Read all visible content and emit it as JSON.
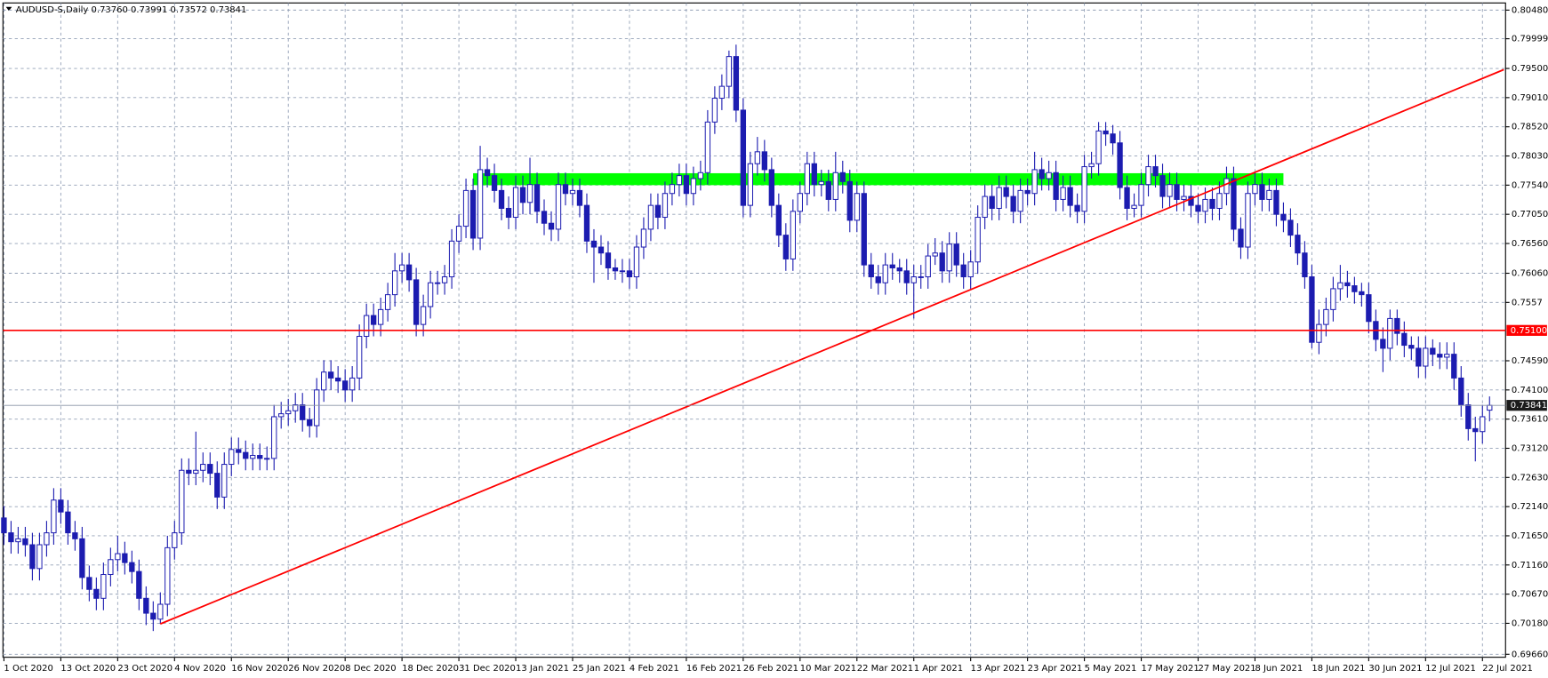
{
  "chart_data": {
    "type": "candlestick",
    "title": "AUDUSD-S,Daily",
    "quote": {
      "value_labels": [
        "0.73760",
        "0.73991",
        "0.73572",
        "0.73841"
      ]
    },
    "categories": [
      "1 Oct 2020",
      null,
      null,
      null,
      null,
      null,
      null,
      null,
      "13 Oct 2020",
      null,
      null,
      null,
      null,
      null,
      null,
      null,
      "23 Oct 2020",
      null,
      null,
      null,
      null,
      null,
      null,
      null,
      "4 Nov 2020",
      null,
      null,
      null,
      null,
      null,
      null,
      null,
      "16 Nov 2020",
      null,
      null,
      null,
      null,
      null,
      null,
      null,
      "26 Nov 2020",
      null,
      null,
      null,
      null,
      null,
      null,
      null,
      "8 Dec 2020",
      null,
      null,
      null,
      null,
      null,
      null,
      null,
      "18 Dec 2020",
      null,
      null,
      null,
      null,
      null,
      null,
      null,
      "31 Dec 2020",
      null,
      null,
      null,
      null,
      null,
      null,
      null,
      "13 Jan 2021",
      null,
      null,
      null,
      null,
      null,
      null,
      null,
      "25 Jan 2021",
      null,
      null,
      null,
      null,
      null,
      null,
      null,
      "4 Feb 2021",
      null,
      null,
      null,
      null,
      null,
      null,
      null,
      "16 Feb 2021",
      null,
      null,
      null,
      null,
      null,
      null,
      null,
      "26 Feb 2021",
      null,
      null,
      null,
      null,
      null,
      null,
      null,
      "10 Mar 2021",
      null,
      null,
      null,
      null,
      null,
      null,
      null,
      "22 Mar 2021",
      null,
      null,
      null,
      null,
      null,
      null,
      null,
      "1 Apr 2021",
      null,
      null,
      null,
      null,
      null,
      null,
      null,
      "13 Apr 2021",
      null,
      null,
      null,
      null,
      null,
      null,
      null,
      "23 Apr 2021",
      null,
      null,
      null,
      null,
      null,
      null,
      null,
      "5 May 2021",
      null,
      null,
      null,
      null,
      null,
      null,
      null,
      "17 May 2021",
      null,
      null,
      null,
      null,
      null,
      null,
      null,
      "27 May 2021",
      null,
      null,
      null,
      null,
      null,
      null,
      null,
      "8 Jun 2021",
      null,
      null,
      null,
      null,
      null,
      null,
      null,
      "18 Jun 2021",
      null,
      null,
      null,
      null,
      null,
      null,
      null,
      "30 Jun 2021",
      null,
      null,
      null,
      null,
      null,
      null,
      null,
      "12 Jul 2021",
      null,
      null,
      null,
      null,
      null,
      null,
      null,
      "22 Jul 2021",
      null
    ],
    "open": [
      0.7195,
      0.717,
      0.7155,
      0.716,
      0.715,
      0.711,
      0.715,
      0.717,
      0.7225,
      0.7205,
      0.717,
      0.716,
      0.7095,
      0.7075,
      0.706,
      0.71,
      0.7125,
      0.7135,
      0.712,
      0.7105,
      0.706,
      0.7035,
      0.7025,
      0.705,
      0.7145,
      0.717,
      0.7275,
      0.727,
      0.7275,
      0.7285,
      0.727,
      0.723,
      0.7285,
      0.731,
      0.7305,
      0.7295,
      0.73,
      0.7295,
      0.7295,
      0.7365,
      0.737,
      0.7375,
      0.7385,
      0.736,
      0.735,
      0.741,
      0.744,
      0.743,
      0.7425,
      0.741,
      0.743,
      0.75,
      0.7535,
      0.752,
      0.7545,
      0.757,
      0.761,
      0.762,
      0.7595,
      0.752,
      0.755,
      0.759,
      0.759,
      0.76,
      0.766,
      0.7685,
      0.7745,
      0.7665,
      0.778,
      0.777,
      0.7745,
      0.7715,
      0.77,
      0.775,
      0.7725,
      0.7755,
      0.771,
      0.769,
      0.768,
      0.7755,
      0.774,
      0.7745,
      0.772,
      0.766,
      0.765,
      0.764,
      0.7615,
      0.761,
      0.761,
      0.76,
      0.765,
      0.768,
      0.772,
      0.77,
      0.774,
      0.7755,
      0.777,
      0.774,
      0.7765,
      0.7775,
      0.786,
      0.79,
      0.792,
      0.797,
      0.788,
      0.772,
      0.779,
      0.781,
      0.778,
      0.772,
      0.767,
      0.763,
      0.771,
      0.774,
      0.779,
      0.7755,
      0.776,
      0.773,
      0.7775,
      0.776,
      0.7695,
      0.774,
      0.762,
      0.76,
      0.759,
      0.762,
      0.7615,
      0.761,
      0.759,
      0.76,
      0.76,
      0.7635,
      0.764,
      0.761,
      0.7655,
      0.762,
      0.76,
      0.7625,
      0.77,
      0.7735,
      0.7715,
      0.775,
      0.7735,
      0.771,
      0.7745,
      0.774,
      0.778,
      0.7765,
      0.7775,
      0.773,
      0.775,
      0.772,
      0.771,
      0.7785,
      0.779,
      0.7845,
      0.784,
      0.7825,
      0.775,
      0.7715,
      0.772,
      0.7755,
      0.7785,
      0.777,
      0.7735,
      0.7755,
      0.773,
      0.7735,
      0.772,
      0.771,
      0.773,
      0.7715,
      0.774,
      0.7765,
      0.768,
      0.765,
      0.774,
      0.7755,
      0.773,
      0.7745,
      0.7705,
      0.7695,
      0.767,
      0.764,
      0.76,
      0.749,
      0.752,
      0.7545,
      0.758,
      0.759,
      0.7585,
      0.7575,
      0.757,
      0.7525,
      0.7495,
      0.748,
      0.753,
      0.7505,
      0.7485,
      0.748,
      0.745,
      0.748,
      0.747,
      0.7465,
      0.747,
      0.743,
      0.7385,
      0.7345,
      0.734,
      0.7376
    ],
    "high": [
      0.7215,
      0.719,
      0.718,
      0.718,
      0.717,
      0.717,
      0.719,
      0.7245,
      0.7245,
      0.7225,
      0.719,
      0.718,
      0.7115,
      0.7095,
      0.712,
      0.7145,
      0.7165,
      0.7155,
      0.714,
      0.7125,
      0.708,
      0.7055,
      0.707,
      0.7165,
      0.719,
      0.7295,
      0.7295,
      0.734,
      0.7305,
      0.7305,
      0.729,
      0.7305,
      0.733,
      0.733,
      0.7325,
      0.732,
      0.732,
      0.7315,
      0.7385,
      0.739,
      0.7395,
      0.7405,
      0.7405,
      0.738,
      0.743,
      0.746,
      0.746,
      0.745,
      0.7445,
      0.745,
      0.752,
      0.7555,
      0.7555,
      0.7565,
      0.759,
      0.764,
      0.764,
      0.764,
      0.7615,
      0.757,
      0.761,
      0.761,
      0.762,
      0.768,
      0.7705,
      0.7765,
      0.7765,
      0.782,
      0.78,
      0.779,
      0.7765,
      0.7735,
      0.777,
      0.777,
      0.78,
      0.7775,
      0.773,
      0.771,
      0.7775,
      0.7775,
      0.7765,
      0.7765,
      0.774,
      0.768,
      0.767,
      0.766,
      0.763,
      0.763,
      0.763,
      0.767,
      0.77,
      0.774,
      0.774,
      0.776,
      0.7775,
      0.779,
      0.779,
      0.7785,
      0.7795,
      0.788,
      0.792,
      0.794,
      0.798,
      0.799,
      0.79,
      0.781,
      0.7835,
      0.783,
      0.78,
      0.774,
      0.769,
      0.773,
      0.776,
      0.781,
      0.781,
      0.778,
      0.778,
      0.781,
      0.7795,
      0.778,
      0.776,
      0.776,
      0.764,
      0.762,
      0.764,
      0.764,
      0.763,
      0.763,
      0.762,
      0.762,
      0.7655,
      0.7665,
      0.766,
      0.7675,
      0.7675,
      0.764,
      0.7645,
      0.772,
      0.7755,
      0.7755,
      0.777,
      0.777,
      0.7755,
      0.7765,
      0.7765,
      0.781,
      0.78,
      0.7795,
      0.7795,
      0.777,
      0.777,
      0.774,
      0.7805,
      0.781,
      0.786,
      0.786,
      0.7855,
      0.7845,
      0.777,
      0.774,
      0.7775,
      0.7805,
      0.7805,
      0.779,
      0.7775,
      0.7775,
      0.7755,
      0.7755,
      0.774,
      0.775,
      0.775,
      0.776,
      0.7785,
      0.7785,
      0.77,
      0.776,
      0.7775,
      0.7775,
      0.7765,
      0.7765,
      0.7725,
      0.7715,
      0.769,
      0.766,
      0.762,
      0.7545,
      0.7565,
      0.76,
      0.762,
      0.761,
      0.76,
      0.759,
      0.759,
      0.7545,
      0.7515,
      0.7545,
      0.7545,
      0.7525,
      0.75,
      0.75,
      0.75,
      0.7495,
      0.749,
      0.749,
      0.749,
      0.745,
      0.7405,
      0.7365,
      0.7385,
      0.73991
    ],
    "low": [
      0.715,
      0.7135,
      0.7135,
      0.713,
      0.709,
      0.709,
      0.713,
      0.715,
      0.7185,
      0.715,
      0.714,
      0.7075,
      0.7055,
      0.704,
      0.704,
      0.708,
      0.7105,
      0.71,
      0.7085,
      0.704,
      0.7015,
      0.7005,
      0.7017,
      0.703,
      0.7125,
      0.715,
      0.725,
      0.725,
      0.7255,
      0.725,
      0.721,
      0.721,
      0.7265,
      0.7285,
      0.7275,
      0.7275,
      0.7275,
      0.7275,
      0.7275,
      0.7345,
      0.735,
      0.7355,
      0.734,
      0.733,
      0.733,
      0.739,
      0.741,
      0.7405,
      0.739,
      0.739,
      0.741,
      0.748,
      0.75,
      0.75,
      0.7525,
      0.755,
      0.759,
      0.7575,
      0.75,
      0.75,
      0.753,
      0.757,
      0.757,
      0.758,
      0.764,
      0.7665,
      0.7645,
      0.7645,
      0.775,
      0.7725,
      0.7695,
      0.768,
      0.768,
      0.7705,
      0.7705,
      0.769,
      0.767,
      0.766,
      0.766,
      0.772,
      0.772,
      0.77,
      0.764,
      0.759,
      0.762,
      0.7595,
      0.7595,
      0.759,
      0.758,
      0.758,
      0.763,
      0.766,
      0.768,
      0.768,
      0.772,
      0.7735,
      0.772,
      0.772,
      0.7745,
      0.7755,
      0.784,
      0.788,
      0.79,
      0.786,
      0.77,
      0.77,
      0.777,
      0.776,
      0.77,
      0.765,
      0.761,
      0.761,
      0.769,
      0.772,
      0.7735,
      0.7735,
      0.771,
      0.771,
      0.774,
      0.7675,
      0.7675,
      0.76,
      0.758,
      0.757,
      0.757,
      0.7595,
      0.759,
      0.757,
      0.753,
      0.758,
      0.758,
      0.762,
      0.759,
      0.759,
      0.76,
      0.758,
      0.758,
      0.7605,
      0.768,
      0.7695,
      0.7695,
      0.7715,
      0.769,
      0.769,
      0.772,
      0.772,
      0.7745,
      0.7745,
      0.771,
      0.771,
      0.77,
      0.769,
      0.769,
      0.7765,
      0.777,
      0.782,
      0.7805,
      0.773,
      0.7695,
      0.77,
      0.77,
      0.7735,
      0.775,
      0.7715,
      0.7715,
      0.771,
      0.771,
      0.77,
      0.769,
      0.769,
      0.7695,
      0.7695,
      0.772,
      0.766,
      0.763,
      0.763,
      0.772,
      0.771,
      0.771,
      0.7685,
      0.7675,
      0.765,
      0.762,
      0.758,
      0.748,
      0.747,
      0.75,
      0.7525,
      0.756,
      0.7565,
      0.7555,
      0.755,
      0.7505,
      0.7475,
      0.744,
      0.746,
      0.7485,
      0.7465,
      0.746,
      0.743,
      0.743,
      0.745,
      0.7445,
      0.7445,
      0.741,
      0.7365,
      0.7325,
      0.729,
      0.732,
      0.73572
    ],
    "close": [
      0.717,
      0.7155,
      0.716,
      0.715,
      0.711,
      0.715,
      0.717,
      0.7225,
      0.7205,
      0.717,
      0.716,
      0.7095,
      0.7075,
      0.706,
      0.71,
      0.7125,
      0.7135,
      0.712,
      0.7105,
      0.706,
      0.7035,
      0.7025,
      0.705,
      0.7145,
      0.717,
      0.7275,
      0.727,
      0.7275,
      0.7285,
      0.727,
      0.723,
      0.7285,
      0.731,
      0.7305,
      0.7295,
      0.73,
      0.7295,
      0.7295,
      0.7365,
      0.737,
      0.7375,
      0.7385,
      0.736,
      0.735,
      0.741,
      0.744,
      0.743,
      0.7425,
      0.741,
      0.743,
      0.75,
      0.7535,
      0.752,
      0.7545,
      0.757,
      0.761,
      0.762,
      0.7595,
      0.752,
      0.755,
      0.759,
      0.759,
      0.76,
      0.766,
      0.7685,
      0.7745,
      0.7665,
      0.778,
      0.777,
      0.7745,
      0.7715,
      0.77,
      0.775,
      0.7725,
      0.7755,
      0.771,
      0.769,
      0.768,
      0.7755,
      0.774,
      0.7745,
      0.772,
      0.766,
      0.765,
      0.764,
      0.7615,
      0.761,
      0.761,
      0.76,
      0.765,
      0.768,
      0.772,
      0.77,
      0.774,
      0.7755,
      0.777,
      0.774,
      0.7765,
      0.7775,
      0.786,
      0.79,
      0.792,
      0.797,
      0.788,
      0.772,
      0.779,
      0.781,
      0.778,
      0.772,
      0.767,
      0.763,
      0.771,
      0.774,
      0.779,
      0.7755,
      0.776,
      0.773,
      0.7775,
      0.776,
      0.7695,
      0.774,
      0.762,
      0.76,
      0.759,
      0.762,
      0.7615,
      0.761,
      0.759,
      0.76,
      0.76,
      0.7635,
      0.764,
      0.761,
      0.7655,
      0.762,
      0.76,
      0.7625,
      0.77,
      0.7735,
      0.7715,
      0.775,
      0.7735,
      0.771,
      0.7745,
      0.774,
      0.778,
      0.7765,
      0.7775,
      0.773,
      0.775,
      0.772,
      0.771,
      0.7785,
      0.779,
      0.7845,
      0.784,
      0.7825,
      0.775,
      0.7715,
      0.772,
      0.7755,
      0.7785,
      0.777,
      0.7735,
      0.7755,
      0.773,
      0.7735,
      0.772,
      0.771,
      0.773,
      0.7715,
      0.774,
      0.7765,
      0.768,
      0.765,
      0.774,
      0.7755,
      0.773,
      0.7745,
      0.7705,
      0.7695,
      0.767,
      0.764,
      0.76,
      0.749,
      0.752,
      0.7545,
      0.758,
      0.759,
      0.7585,
      0.7575,
      0.757,
      0.7525,
      0.7495,
      0.748,
      0.753,
      0.7505,
      0.7485,
      0.748,
      0.745,
      0.748,
      0.747,
      0.7465,
      0.747,
      0.743,
      0.7385,
      0.7345,
      0.734,
      0.7365,
      0.73841
    ],
    "ylim": [
      0.6961,
      0.806
    ],
    "yticks": [
      {
        "value": 0.8048,
        "label": "0.80480"
      },
      0.79999,
      {
        "value": 0.795,
        "label": "0.79500"
      },
      {
        "value": 0.7901,
        "label": "0.79010"
      },
      {
        "value": 0.7852,
        "label": "0.78520"
      },
      {
        "value": 0.7803,
        "label": "0.78030"
      },
      {
        "value": 0.7754,
        "label": "0.77540"
      },
      {
        "value": 0.7705,
        "label": "0.77050"
      },
      {
        "value": 0.7656,
        "label": "0.76560"
      },
      {
        "value": 0.7606,
        "label": "0.76060"
      },
      0.7557,
      {
        "value": 0.7459,
        "label": "0.74590"
      },
      {
        "value": 0.741,
        "label": "0.74100"
      },
      {
        "value": 0.7361,
        "label": "0.73610"
      },
      {
        "value": 0.7312,
        "label": "0.73120"
      },
      {
        "value": 0.7263,
        "label": "0.72630"
      },
      {
        "value": 0.7214,
        "label": "0.72140"
      },
      {
        "value": 0.7165,
        "label": "0.71650"
      },
      {
        "value": 0.7116,
        "label": "0.71160"
      },
      {
        "value": 0.7067,
        "label": "0.70670"
      },
      {
        "value": 0.7018,
        "label": "0.70180"
      },
      {
        "value": 0.6966,
        "label": "0.69660"
      }
    ],
    "grid": true,
    "colors": {
      "candle": "#1c1cb0",
      "bull_fill": "#ffffff",
      "grid": "#93a0b6"
    },
    "zone": {
      "x": [
        66,
        180
      ],
      "y": [
        0.7754,
        0.7774
      ],
      "color": "#00ff00"
    },
    "hline": {
      "value": 0.751,
      "label": "0.75100",
      "color": "#ff0000"
    },
    "trendline": {
      "x": [
        22,
        211
      ],
      "y": [
        0.7017,
        0.7948
      ],
      "color": "#ff0000"
    },
    "bid": {
      "value": 0.73841,
      "label": "0.73841",
      "color": "#8a94a6"
    }
  }
}
